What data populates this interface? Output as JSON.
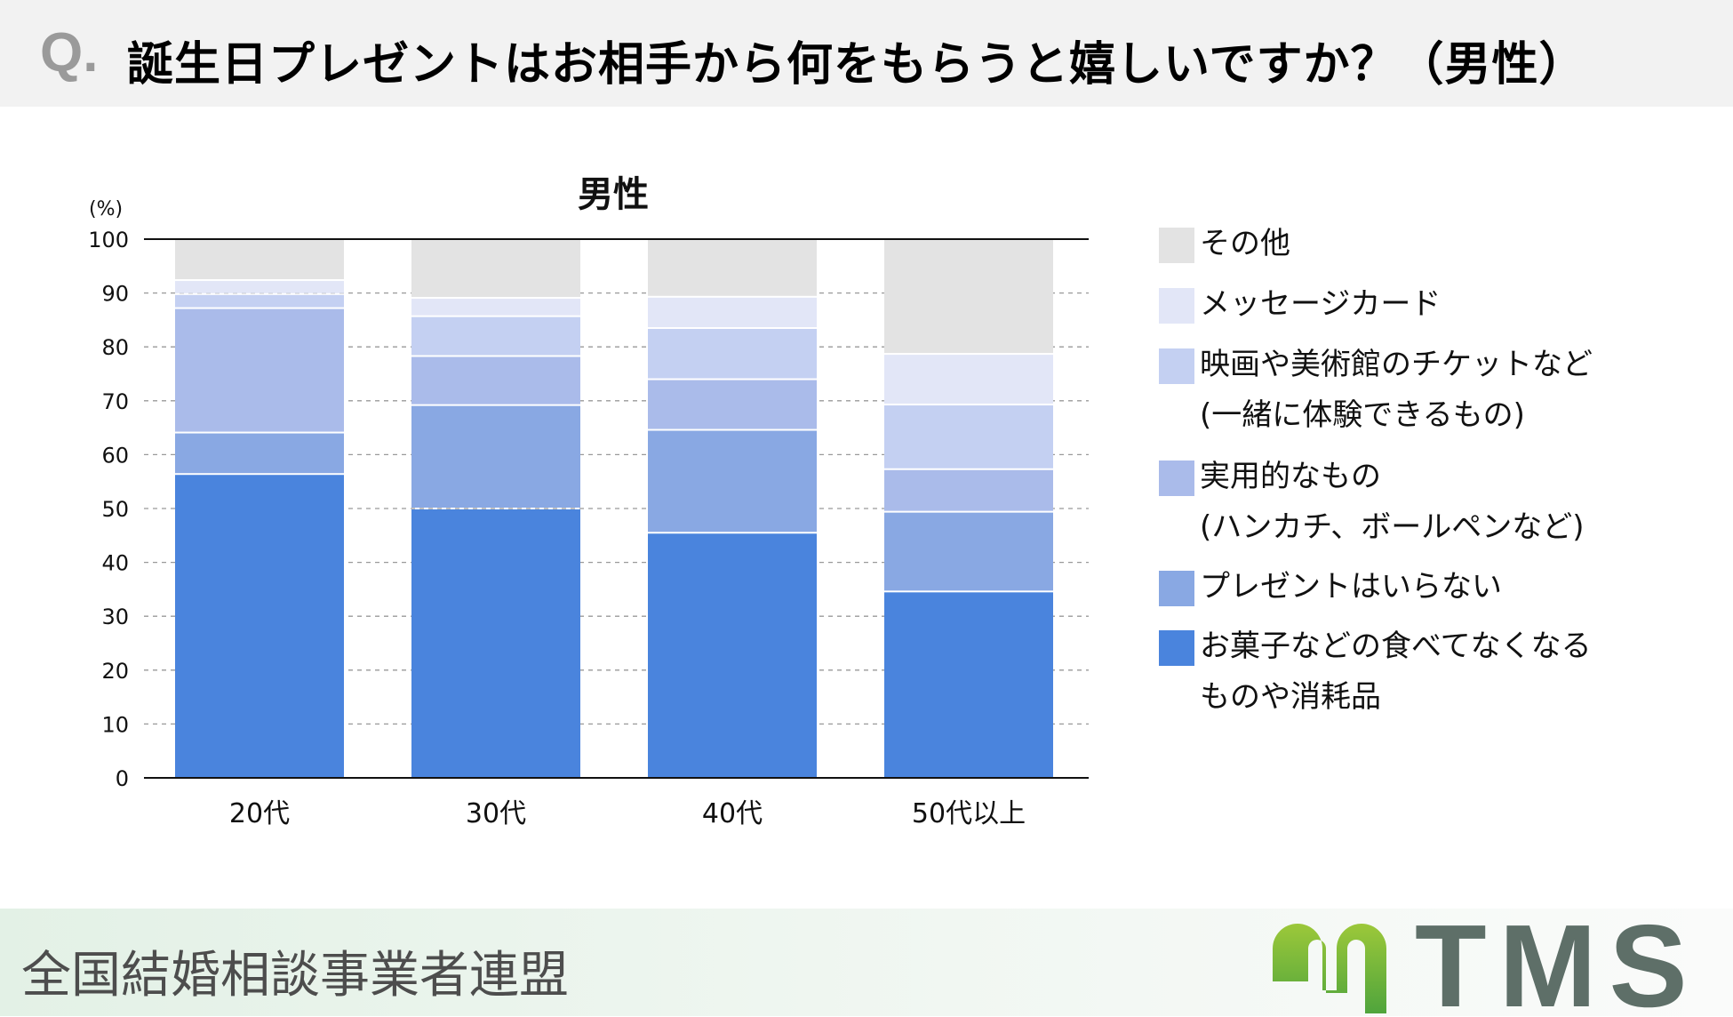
{
  "header": {
    "q_mark": "Q.",
    "title": "誕生日プレゼントはお相手から何をもらうと嬉しいですか？（男性）"
  },
  "footer": {
    "organization": "全国結婚相談事業者連盟",
    "logo_text": "TMS",
    "logo_colors": {
      "mark": "#6cb33f",
      "text": "#5e6f68"
    }
  },
  "chart_data": {
    "type": "bar",
    "stacked": true,
    "title": "男性",
    "ylabel": "(%)",
    "xlabel": "",
    "ylim": [
      0,
      100
    ],
    "yticks": [
      0,
      10,
      20,
      30,
      40,
      50,
      60,
      70,
      80,
      90,
      100
    ],
    "grid": true,
    "legend_placement": "right",
    "categories": [
      "20代",
      "30代",
      "40代",
      "50代以上"
    ],
    "series": [
      {
        "name": "お菓子などの食べてなくなるものや消耗品",
        "name_lines": [
          "お菓子などの食べてなくなる",
          "ものや消耗品"
        ],
        "color": "#4a84dd",
        "values": [
          56.4,
          50.0,
          45.5,
          34.6
        ]
      },
      {
        "name": "プレゼントはいらない",
        "name_lines": [
          "プレゼントはいらない"
        ],
        "color": "#89a8e3",
        "values": [
          7.7,
          19.2,
          19.1,
          14.8
        ]
      },
      {
        "name": "実用的なもの（ハンカチ、ボールペンなど）",
        "name_lines": [
          "実用的なもの",
          "(ハンカチ、ボールペンなど)"
        ],
        "color": "#aabbea",
        "values": [
          23.1,
          9.1,
          9.4,
          7.9
        ]
      },
      {
        "name": "映画や美術館のチケットなど（一緒に体験できるもの）",
        "name_lines": [
          "映画や美術館のチケットなど",
          "(一緒に体験できるもの)"
        ],
        "color": "#c4d0f2",
        "values": [
          2.6,
          7.4,
          9.5,
          12.0
        ]
      },
      {
        "name": "メッセージカード",
        "name_lines": [
          "メッセージカード"
        ],
        "color": "#e2e6f7",
        "values": [
          2.6,
          3.4,
          5.8,
          9.4
        ]
      },
      {
        "name": "その他",
        "name_lines": [
          "その他"
        ],
        "color": "#e3e3e3",
        "values": [
          7.6,
          10.9,
          10.7,
          21.3
        ]
      }
    ]
  }
}
